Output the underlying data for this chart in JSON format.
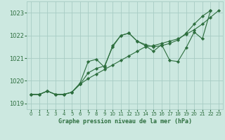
{
  "title": "Graphe pression niveau de la mer (hPa)",
  "background_color": "#cce8e0",
  "grid_color": "#a8ccc4",
  "line_color": "#2d6e3e",
  "marker_color": "#2d6e3e",
  "xlim": [
    -0.5,
    23.5
  ],
  "ylim": [
    1018.75,
    1023.5
  ],
  "yticks": [
    1019,
    1020,
    1021,
    1022,
    1023
  ],
  "xticks": [
    0,
    1,
    2,
    3,
    4,
    5,
    6,
    7,
    8,
    9,
    10,
    11,
    12,
    13,
    14,
    15,
    16,
    17,
    18,
    19,
    20,
    21,
    22,
    23
  ],
  "series": [
    {
      "x": [
        0,
        1,
        2,
        3,
        4,
        5,
        6,
        7,
        8,
        9,
        10,
        11,
        12,
        13,
        14,
        15,
        16,
        17,
        18,
        19,
        20,
        21,
        22,
        23
      ],
      "y": [
        1019.4,
        1019.4,
        1019.55,
        1019.4,
        1019.4,
        1019.5,
        1019.85,
        1020.1,
        1020.3,
        1020.5,
        1020.7,
        1020.9,
        1021.1,
        1021.3,
        1021.5,
        1021.55,
        1021.65,
        1021.75,
        1021.85,
        1022.05,
        1022.25,
        1022.5,
        1022.8,
        1023.1
      ]
    },
    {
      "x": [
        0,
        1,
        2,
        3,
        4,
        5,
        6,
        7,
        8,
        9,
        10,
        11,
        12,
        13,
        14,
        15,
        16,
        17,
        18,
        19,
        20,
        21,
        22
      ],
      "y": [
        1019.4,
        1019.4,
        1019.55,
        1019.4,
        1019.4,
        1019.5,
        1019.85,
        1020.35,
        1020.55,
        1020.65,
        1021.5,
        1022.0,
        1022.1,
        1021.75,
        1021.6,
        1021.5,
        1021.55,
        1021.65,
        1021.8,
        1022.1,
        1022.5,
        1022.85,
        1023.1
      ]
    },
    {
      "x": [
        0,
        1,
        2,
        3,
        4,
        5,
        6,
        7,
        8,
        9,
        10,
        11,
        12,
        13,
        14,
        15,
        16,
        17,
        18,
        19,
        20,
        21,
        22
      ],
      "y": [
        1019.4,
        1019.4,
        1019.55,
        1019.4,
        1019.4,
        1019.5,
        1019.9,
        1020.85,
        1020.95,
        1020.6,
        1021.55,
        1022.0,
        1022.1,
        1021.75,
        1021.55,
        1021.3,
        1021.6,
        1020.9,
        1020.85,
        1021.45,
        1022.15,
        1021.85,
        1023.1
      ]
    }
  ]
}
